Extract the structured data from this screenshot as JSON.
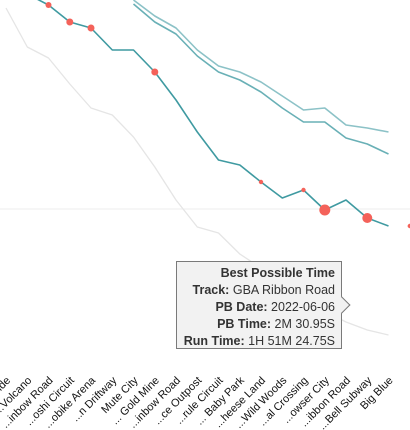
{
  "chart_data": {
    "type": "line",
    "categories": [
      "...ride",
      "...Volcano",
      "...inbow Road",
      "...oshi Circuit",
      "...obike Arena",
      "...n Driftway",
      "Mute City",
      "... Gold Mine",
      "...inbow Road",
      "...ce Outpost",
      "...rule Circuit",
      "... Baby Park",
      "...heese Land",
      "...Wild Woods",
      "...al Crossing",
      "...owser City",
      "...ibbon Road",
      "...Bell Subway",
      "Big Blue"
    ],
    "series": [
      {
        "values": [
          null,
          null,
          null,
          null,
          null,
          null,
          0,
          16,
          28,
          50,
          66,
          72,
          82,
          96,
          110,
          108,
          125,
          128,
          132
        ],
        "color": "#8cc2c7"
      },
      {
        "values": [
          null,
          null,
          null,
          null,
          null,
          null,
          4,
          22,
          34,
          56,
          72,
          80,
          92,
          108,
          122,
          122,
          138,
          144,
          154
        ],
        "color": "#69b0b6"
      },
      {
        "values": [
          -10,
          -6,
          5,
          22,
          28,
          50,
          50,
          72,
          100,
          132,
          160,
          165,
          182,
          198,
          190,
          210,
          200,
          218,
          226
        ],
        "color": "#3f9aa1",
        "markers": [
          2,
          3,
          4,
          7,
          12,
          14,
          15,
          17,
          19
        ]
      },
      {
        "values": [
          8,
          47,
          58,
          84,
          108,
          115,
          137,
          167,
          200,
          227,
          233,
          254,
          268,
          283,
          297,
          311,
          322,
          330,
          335
        ],
        "color": "#e5e5e5"
      }
    ],
    "tooltip": {
      "title": "Best Possible Time",
      "rows": [
        {
          "label": "Track:",
          "value": "GBA Ribbon Road"
        },
        {
          "label": "PB Date:",
          "value": "2022-06-06"
        },
        {
          "label": "PB Time:",
          "value": "2M 30.95S"
        },
        {
          "label": "Run Time:",
          "value": "1H 51M 24.75S"
        }
      ]
    },
    "grid": true,
    "marker_color": "#f4625a"
  }
}
